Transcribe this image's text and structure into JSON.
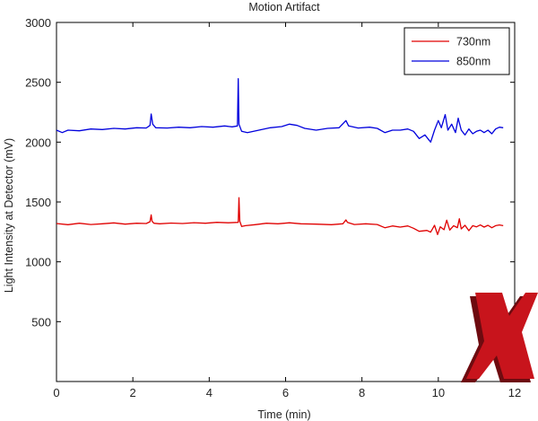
{
  "chart_data": {
    "type": "line",
    "title": "Motion Artifact",
    "xlabel": "Time (min)",
    "ylabel": "Light Intensity at Detector (mV)",
    "xlim": [
      0,
      12
    ],
    "ylim": [
      0,
      3000
    ],
    "x_ticks": [
      0,
      2,
      4,
      6,
      8,
      10,
      12
    ],
    "y_ticks": [
      500,
      1000,
      1500,
      2000,
      2500,
      3000
    ],
    "grid": false,
    "legend_position": "top-right",
    "series": [
      {
        "name": "730nm",
        "color": "#e00000",
        "points": [
          [
            0.0,
            1320
          ],
          [
            0.3,
            1310
          ],
          [
            0.6,
            1322
          ],
          [
            0.9,
            1312
          ],
          [
            1.2,
            1318
          ],
          [
            1.5,
            1325
          ],
          [
            1.8,
            1315
          ],
          [
            2.1,
            1322
          ],
          [
            2.35,
            1320
          ],
          [
            2.45,
            1335
          ],
          [
            2.48,
            1392
          ],
          [
            2.5,
            1340
          ],
          [
            2.55,
            1322
          ],
          [
            2.7,
            1318
          ],
          [
            3.0,
            1324
          ],
          [
            3.3,
            1320
          ],
          [
            3.6,
            1327
          ],
          [
            3.9,
            1322
          ],
          [
            4.2,
            1330
          ],
          [
            4.5,
            1326
          ],
          [
            4.7,
            1329
          ],
          [
            4.76,
            1330
          ],
          [
            4.78,
            1535
          ],
          [
            4.8,
            1340
          ],
          [
            4.85,
            1295
          ],
          [
            4.95,
            1302
          ],
          [
            5.2,
            1310
          ],
          [
            5.5,
            1322
          ],
          [
            5.8,
            1318
          ],
          [
            6.1,
            1326
          ],
          [
            6.4,
            1318
          ],
          [
            6.8,
            1315
          ],
          [
            7.2,
            1310
          ],
          [
            7.5,
            1318
          ],
          [
            7.58,
            1350
          ],
          [
            7.62,
            1330
          ],
          [
            7.8,
            1312
          ],
          [
            8.1,
            1318
          ],
          [
            8.4,
            1312
          ],
          [
            8.6,
            1285
          ],
          [
            8.8,
            1300
          ],
          [
            9.0,
            1290
          ],
          [
            9.2,
            1300
          ],
          [
            9.35,
            1280
          ],
          [
            9.5,
            1255
          ],
          [
            9.7,
            1262
          ],
          [
            9.8,
            1248
          ],
          [
            9.9,
            1305
          ],
          [
            9.98,
            1228
          ],
          [
            10.05,
            1292
          ],
          [
            10.15,
            1268
          ],
          [
            10.22,
            1348
          ],
          [
            10.3,
            1265
          ],
          [
            10.4,
            1302
          ],
          [
            10.5,
            1285
          ],
          [
            10.55,
            1360
          ],
          [
            10.6,
            1275
          ],
          [
            10.7,
            1305
          ],
          [
            10.8,
            1260
          ],
          [
            10.9,
            1302
          ],
          [
            11.0,
            1292
          ],
          [
            11.1,
            1308
          ],
          [
            11.2,
            1290
          ],
          [
            11.3,
            1305
          ],
          [
            11.4,
            1285
          ],
          [
            11.5,
            1302
          ],
          [
            11.6,
            1308
          ],
          [
            11.7,
            1302
          ]
        ]
      },
      {
        "name": "850nm",
        "color": "#0000dd",
        "points": [
          [
            0.0,
            2100
          ],
          [
            0.15,
            2080
          ],
          [
            0.3,
            2100
          ],
          [
            0.6,
            2095
          ],
          [
            0.9,
            2110
          ],
          [
            1.2,
            2105
          ],
          [
            1.5,
            2115
          ],
          [
            1.8,
            2110
          ],
          [
            2.1,
            2120
          ],
          [
            2.35,
            2118
          ],
          [
            2.45,
            2140
          ],
          [
            2.48,
            2235
          ],
          [
            2.52,
            2150
          ],
          [
            2.6,
            2120
          ],
          [
            2.9,
            2118
          ],
          [
            3.2,
            2125
          ],
          [
            3.5,
            2120
          ],
          [
            3.8,
            2130
          ],
          [
            4.1,
            2125
          ],
          [
            4.4,
            2135
          ],
          [
            4.6,
            2128
          ],
          [
            4.74,
            2135
          ],
          [
            4.76,
            2530
          ],
          [
            4.78,
            2150
          ],
          [
            4.85,
            2090
          ],
          [
            5.0,
            2080
          ],
          [
            5.3,
            2100
          ],
          [
            5.6,
            2120
          ],
          [
            5.9,
            2130
          ],
          [
            6.1,
            2150
          ],
          [
            6.3,
            2140
          ],
          [
            6.5,
            2115
          ],
          [
            6.8,
            2100
          ],
          [
            7.1,
            2115
          ],
          [
            7.4,
            2120
          ],
          [
            7.58,
            2180
          ],
          [
            7.65,
            2135
          ],
          [
            7.9,
            2118
          ],
          [
            8.2,
            2125
          ],
          [
            8.4,
            2115
          ],
          [
            8.6,
            2080
          ],
          [
            8.8,
            2100
          ],
          [
            9.0,
            2100
          ],
          [
            9.2,
            2110
          ],
          [
            9.35,
            2090
          ],
          [
            9.5,
            2030
          ],
          [
            9.65,
            2060
          ],
          [
            9.8,
            2000
          ],
          [
            9.9,
            2100
          ],
          [
            10.0,
            2180
          ],
          [
            10.08,
            2120
          ],
          [
            10.18,
            2230
          ],
          [
            10.25,
            2100
          ],
          [
            10.35,
            2150
          ],
          [
            10.45,
            2080
          ],
          [
            10.52,
            2200
          ],
          [
            10.6,
            2100
          ],
          [
            10.7,
            2060
          ],
          [
            10.8,
            2110
          ],
          [
            10.9,
            2070
          ],
          [
            11.0,
            2090
          ],
          [
            11.1,
            2100
          ],
          [
            11.2,
            2080
          ],
          [
            11.3,
            2100
          ],
          [
            11.4,
            2070
          ],
          [
            11.5,
            2110
          ],
          [
            11.6,
            2125
          ],
          [
            11.7,
            2120
          ]
        ]
      }
    ]
  }
}
